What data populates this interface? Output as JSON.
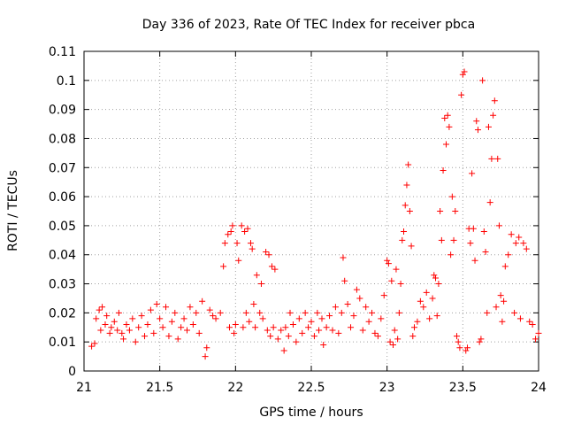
{
  "chart_data": {
    "type": "scatter",
    "title": "Day 336 of 2023, Rate Of TEC Index for receiver pbca",
    "xlabel": "GPS time / hours",
    "ylabel": "ROTI / TECUs",
    "xlim": [
      21,
      24
    ],
    "ylim": [
      0,
      0.11
    ],
    "xticks": [
      21,
      21.5,
      22,
      22.5,
      23,
      23.5,
      24
    ],
    "xtick_labels": [
      "21",
      "21.5",
      "22",
      "22.5",
      "23",
      "23.5",
      "24"
    ],
    "yticks": [
      0,
      0.01,
      0.02,
      0.03,
      0.04,
      0.05,
      0.06,
      0.07,
      0.08,
      0.09,
      0.1,
      0.11
    ],
    "ytick_labels": [
      "0",
      "0.01",
      "0.02",
      "0.03",
      "0.04",
      "0.05",
      "0.06",
      "0.07",
      "0.08",
      "0.09",
      "0.1",
      "0.11"
    ],
    "grid": true,
    "marker": "+",
    "color": "#ff0000",
    "series": [
      {
        "name": "pbca",
        "points": [
          [
            21.05,
            0.0085
          ],
          [
            21.07,
            0.0095
          ],
          [
            21.08,
            0.018
          ],
          [
            21.1,
            0.021
          ],
          [
            21.11,
            0.014
          ],
          [
            21.12,
            0.022
          ],
          [
            21.14,
            0.016
          ],
          [
            21.15,
            0.019
          ],
          [
            21.17,
            0.013
          ],
          [
            21.18,
            0.015
          ],
          [
            21.2,
            0.017
          ],
          [
            21.22,
            0.014
          ],
          [
            21.23,
            0.02
          ],
          [
            21.25,
            0.013
          ],
          [
            21.26,
            0.011
          ],
          [
            21.28,
            0.016
          ],
          [
            21.3,
            0.014
          ],
          [
            21.32,
            0.018
          ],
          [
            21.34,
            0.01
          ],
          [
            21.36,
            0.015
          ],
          [
            21.38,
            0.019
          ],
          [
            21.4,
            0.012
          ],
          [
            21.42,
            0.016
          ],
          [
            21.44,
            0.021
          ],
          [
            21.46,
            0.013
          ],
          [
            21.48,
            0.023
          ],
          [
            21.5,
            0.018
          ],
          [
            21.52,
            0.015
          ],
          [
            21.54,
            0.022
          ],
          [
            21.56,
            0.012
          ],
          [
            21.58,
            0.017
          ],
          [
            21.6,
            0.02
          ],
          [
            21.62,
            0.011
          ],
          [
            21.64,
            0.015
          ],
          [
            21.66,
            0.018
          ],
          [
            21.68,
            0.014
          ],
          [
            21.7,
            0.022
          ],
          [
            21.72,
            0.016
          ],
          [
            21.74,
            0.02
          ],
          [
            21.76,
            0.013
          ],
          [
            21.78,
            0.024
          ],
          [
            21.8,
            0.005
          ],
          [
            21.81,
            0.008
          ],
          [
            21.83,
            0.021
          ],
          [
            21.85,
            0.019
          ],
          [
            21.87,
            0.018
          ],
          [
            21.9,
            0.02
          ],
          [
            21.92,
            0.036
          ],
          [
            21.93,
            0.044
          ],
          [
            21.95,
            0.047
          ],
          [
            21.96,
            0.015
          ],
          [
            21.97,
            0.048
          ],
          [
            21.98,
            0.05
          ],
          [
            21.99,
            0.013
          ],
          [
            22.0,
            0.016
          ],
          [
            22.01,
            0.044
          ],
          [
            22.02,
            0.038
          ],
          [
            22.04,
            0.05
          ],
          [
            22.05,
            0.015
          ],
          [
            22.06,
            0.048
          ],
          [
            22.07,
            0.02
          ],
          [
            22.08,
            0.049
          ],
          [
            22.09,
            0.017
          ],
          [
            22.1,
            0.044
          ],
          [
            22.11,
            0.042
          ],
          [
            22.12,
            0.023
          ],
          [
            22.13,
            0.015
          ],
          [
            22.14,
            0.033
          ],
          [
            22.16,
            0.02
          ],
          [
            22.17,
            0.03
          ],
          [
            22.18,
            0.018
          ],
          [
            22.2,
            0.041
          ],
          [
            22.21,
            0.014
          ],
          [
            22.22,
            0.04
          ],
          [
            22.23,
            0.012
          ],
          [
            22.24,
            0.036
          ],
          [
            22.25,
            0.015
          ],
          [
            22.26,
            0.035
          ],
          [
            22.28,
            0.011
          ],
          [
            22.3,
            0.014
          ],
          [
            22.32,
            0.007
          ],
          [
            22.33,
            0.015
          ],
          [
            22.35,
            0.012
          ],
          [
            22.36,
            0.02
          ],
          [
            22.38,
            0.016
          ],
          [
            22.4,
            0.01
          ],
          [
            22.42,
            0.018
          ],
          [
            22.44,
            0.013
          ],
          [
            22.46,
            0.02
          ],
          [
            22.48,
            0.015
          ],
          [
            22.5,
            0.017
          ],
          [
            22.52,
            0.012
          ],
          [
            22.54,
            0.02
          ],
          [
            22.55,
            0.014
          ],
          [
            22.57,
            0.018
          ],
          [
            22.58,
            0.009
          ],
          [
            22.6,
            0.015
          ],
          [
            22.62,
            0.019
          ],
          [
            22.64,
            0.014
          ],
          [
            22.66,
            0.022
          ],
          [
            22.68,
            0.013
          ],
          [
            22.7,
            0.02
          ],
          [
            22.71,
            0.039
          ],
          [
            22.72,
            0.031
          ],
          [
            22.74,
            0.023
          ],
          [
            22.76,
            0.015
          ],
          [
            22.78,
            0.019
          ],
          [
            22.8,
            0.028
          ],
          [
            22.82,
            0.025
          ],
          [
            22.84,
            0.014
          ],
          [
            22.86,
            0.022
          ],
          [
            22.88,
            0.017
          ],
          [
            22.9,
            0.02
          ],
          [
            22.92,
            0.013
          ],
          [
            22.94,
            0.012
          ],
          [
            22.96,
            0.018
          ],
          [
            22.98,
            0.026
          ],
          [
            23.0,
            0.038
          ],
          [
            23.01,
            0.037
          ],
          [
            23.02,
            0.01
          ],
          [
            23.03,
            0.031
          ],
          [
            23.04,
            0.009
          ],
          [
            23.05,
            0.014
          ],
          [
            23.06,
            0.035
          ],
          [
            23.07,
            0.011
          ],
          [
            23.08,
            0.02
          ],
          [
            23.09,
            0.03
          ],
          [
            23.1,
            0.045
          ],
          [
            23.11,
            0.048
          ],
          [
            23.12,
            0.057
          ],
          [
            23.13,
            0.064
          ],
          [
            23.14,
            0.071
          ],
          [
            23.15,
            0.055
          ],
          [
            23.16,
            0.043
          ],
          [
            23.17,
            0.012
          ],
          [
            23.18,
            0.015
          ],
          [
            23.2,
            0.017
          ],
          [
            23.22,
            0.024
          ],
          [
            23.24,
            0.022
          ],
          [
            23.26,
            0.027
          ],
          [
            23.28,
            0.018
          ],
          [
            23.3,
            0.025
          ],
          [
            23.31,
            0.033
          ],
          [
            23.32,
            0.032
          ],
          [
            23.33,
            0.019
          ],
          [
            23.34,
            0.03
          ],
          [
            23.35,
            0.055
          ],
          [
            23.36,
            0.045
          ],
          [
            23.37,
            0.069
          ],
          [
            23.38,
            0.087
          ],
          [
            23.39,
            0.078
          ],
          [
            23.4,
            0.088
          ],
          [
            23.41,
            0.084
          ],
          [
            23.42,
            0.04
          ],
          [
            23.43,
            0.06
          ],
          [
            23.44,
            0.045
          ],
          [
            23.45,
            0.055
          ],
          [
            23.46,
            0.012
          ],
          [
            23.47,
            0.01
          ],
          [
            23.48,
            0.008
          ],
          [
            23.49,
            0.095
          ],
          [
            23.5,
            0.102
          ],
          [
            23.51,
            0.103
          ],
          [
            23.52,
            0.007
          ],
          [
            23.53,
            0.008
          ],
          [
            23.54,
            0.049
          ],
          [
            23.55,
            0.044
          ],
          [
            23.56,
            0.068
          ],
          [
            23.57,
            0.049
          ],
          [
            23.58,
            0.038
          ],
          [
            23.59,
            0.086
          ],
          [
            23.6,
            0.083
          ],
          [
            23.61,
            0.01
          ],
          [
            23.62,
            0.011
          ],
          [
            23.63,
            0.1
          ],
          [
            23.64,
            0.048
          ],
          [
            23.65,
            0.041
          ],
          [
            23.66,
            0.02
          ],
          [
            23.67,
            0.084
          ],
          [
            23.68,
            0.058
          ],
          [
            23.69,
            0.073
          ],
          [
            23.7,
            0.088
          ],
          [
            23.71,
            0.093
          ],
          [
            23.72,
            0.022
          ],
          [
            23.73,
            0.073
          ],
          [
            23.74,
            0.05
          ],
          [
            23.75,
            0.026
          ],
          [
            23.76,
            0.017
          ],
          [
            23.77,
            0.024
          ],
          [
            23.78,
            0.036
          ],
          [
            23.8,
            0.04
          ],
          [
            23.82,
            0.047
          ],
          [
            23.84,
            0.02
          ],
          [
            23.85,
            0.044
          ],
          [
            23.87,
            0.046
          ],
          [
            23.88,
            0.018
          ],
          [
            23.9,
            0.044
          ],
          [
            23.92,
            0.042
          ],
          [
            23.94,
            0.017
          ],
          [
            23.96,
            0.016
          ],
          [
            23.98,
            0.011
          ],
          [
            24.0,
            0.013
          ]
        ]
      }
    ]
  }
}
